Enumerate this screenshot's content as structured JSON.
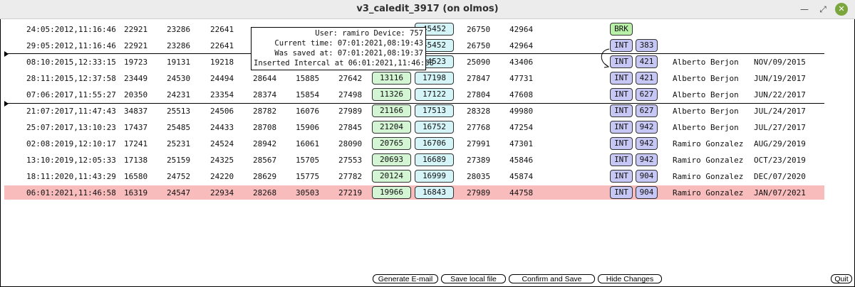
{
  "window": {
    "title": "v3_caledit_3917 (on olmos)"
  },
  "tooltip": {
    "lines": [
      "User: ramiro Device: 757",
      "Current time: 07:01:2021,08:19:43",
      "Was saved at: 07:01:2021,08:19:37",
      "Inserted Intercal at 06:01:2021,11:46:58"
    ]
  },
  "rows": [
    {
      "timestamp": "24:05:2012,11:16:46",
      "v1": "22921",
      "v2": "23286",
      "v3": "22641",
      "v4": "",
      "v5": "",
      "v6": "",
      "v7": "",
      "v8": "45452",
      "v9": "26750",
      "v10": "42964",
      "type": "BRK",
      "code": "",
      "name": "",
      "date": ""
    },
    {
      "timestamp": "29:05:2012,11:16:46",
      "v1": "22921",
      "v2": "23286",
      "v3": "22641",
      "v4": "",
      "v5": "",
      "v6": "",
      "v7": "",
      "v8": "45452",
      "v9": "26750",
      "v10": "42964",
      "type": "INT",
      "code": "383",
      "name": "",
      "date": ""
    },
    {
      "timestamp": "08:10:2015,12:33:15",
      "v1": "19723",
      "v2": "19131",
      "v3": "19218",
      "v4": "",
      "v5": "",
      "v6": "",
      "v7": "",
      "v8": "14523",
      "v9": "25090",
      "v10": "43406",
      "type": "INT",
      "code": "421",
      "name": "Alberto Berjon",
      "date": "NOV/09/2015"
    },
    {
      "timestamp": "28:11:2015,12:37:58",
      "v1": "23449",
      "v2": "24530",
      "v3": "24494",
      "v4": "28644",
      "v5": "15885",
      "v6": "27642",
      "v7": "13116",
      "v8": "17198",
      "v9": "27847",
      "v10": "47731",
      "type": "INT",
      "code": "421",
      "name": "Alberto Berjon",
      "date": "JUN/19/2017"
    },
    {
      "timestamp": "07:06:2017,11:55:27",
      "v1": "20350",
      "v2": "24231",
      "v3": "23354",
      "v4": "28374",
      "v5": "15854",
      "v6": "27498",
      "v7": "11326",
      "v8": "17122",
      "v9": "27804",
      "v10": "47608",
      "type": "INT",
      "code": "627",
      "name": "Alberto Berjon",
      "date": "JUN/22/2017"
    },
    {
      "timestamp": "21:07:2017,11:47:43",
      "v1": "34837",
      "v2": "25513",
      "v3": "24506",
      "v4": "28782",
      "v5": "16076",
      "v6": "27989",
      "v7": "21166",
      "v8": "17513",
      "v9": "28328",
      "v10": "49980",
      "type": "INT",
      "code": "627",
      "name": "Alberto Berjon",
      "date": "JUL/24/2017"
    },
    {
      "timestamp": "25:07:2017,13:10:23",
      "v1": "17437",
      "v2": "25485",
      "v3": "24433",
      "v4": "28708",
      "v5": "15906",
      "v6": "27845",
      "v7": "21204",
      "v8": "16752",
      "v9": "27768",
      "v10": "47254",
      "type": "INT",
      "code": "942",
      "name": "Alberto Berjon",
      "date": "JUL/27/2017"
    },
    {
      "timestamp": "02:08:2019,12:10:17",
      "v1": "17241",
      "v2": "25231",
      "v3": "24524",
      "v4": "28942",
      "v5": "16061",
      "v6": "28090",
      "v7": "20765",
      "v8": "16706",
      "v9": "27991",
      "v10": "47301",
      "type": "INT",
      "code": "942",
      "name": "Ramiro Gonzalez",
      "date": "AUG/29/2019"
    },
    {
      "timestamp": "13:10:2019,12:05:33",
      "v1": "17138",
      "v2": "25159",
      "v3": "24325",
      "v4": "28567",
      "v5": "15705",
      "v6": "27553",
      "v7": "20693",
      "v8": "16689",
      "v9": "27389",
      "v10": "45846",
      "type": "INT",
      "code": "942",
      "name": "Ramiro Gonzalez",
      "date": "OCT/23/2019"
    },
    {
      "timestamp": "18:11:2020,11:43:29",
      "v1": "16580",
      "v2": "24752",
      "v3": "24220",
      "v4": "28629",
      "v5": "15775",
      "v6": "27782",
      "v7": "20124",
      "v8": "16999",
      "v9": "28035",
      "v10": "45874",
      "type": "INT",
      "code": "904",
      "name": "Ramiro Gonzalez",
      "date": "DEC/07/2020"
    },
    {
      "timestamp": "06:01:2021,11:46:58",
      "v1": "16319",
      "v2": "24547",
      "v3": "22934",
      "v4": "28268",
      "v5": "30503",
      "v6": "27219",
      "v7": "19966",
      "v8": "16843",
      "v9": "27989",
      "v10": "44758",
      "type": "INT",
      "code": "904",
      "name": "Ramiro Gonzalez",
      "date": "JAN/07/2021"
    }
  ],
  "buttons": {
    "generate_email": "Generate E-mail",
    "save_local": "Save local file",
    "confirm_save": "Confirm and Save",
    "hide_changes": "Hide Changes",
    "quit": "Quit"
  },
  "colors": {
    "highlight_row": "#f9bcbc",
    "green_cell": "#d4f5d4",
    "cyan_cell": "#d4f4f8",
    "int_tag": "#c7c7f5",
    "brk_tag": "#b9f0a8"
  }
}
